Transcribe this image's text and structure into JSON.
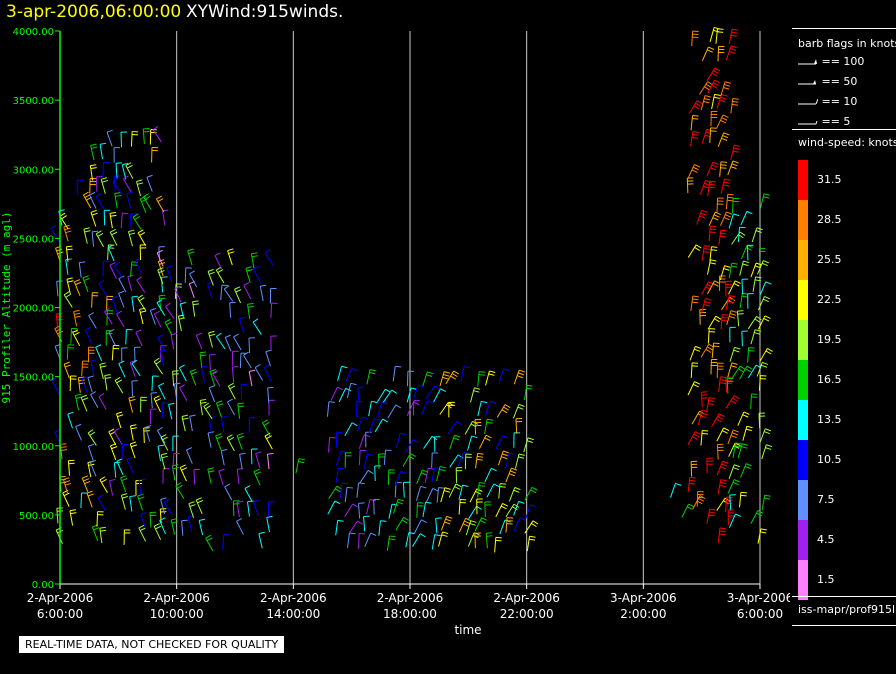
{
  "header": {
    "time": "3-apr-2006,06:00:00",
    "product": "XYWind:915winds."
  },
  "legend": {
    "flags_title": "barb flags in knots",
    "flags": [
      "== 100",
      "== 50",
      "== 10",
      "== 5"
    ],
    "speed_title": "wind-speed: knots",
    "colorbar": [
      {
        "label": "31.5",
        "color": "#ff0000"
      },
      {
        "label": "28.5",
        "color": "#ff8000"
      },
      {
        "label": "25.5",
        "color": "#ffb000"
      },
      {
        "label": "22.5",
        "color": "#ffff00"
      },
      {
        "label": "19.5",
        "color": "#a0ff30"
      },
      {
        "label": "16.5",
        "color": "#00d000"
      },
      {
        "label": "13.5",
        "color": "#00ffff"
      },
      {
        "label": "10.5",
        "color": "#0000ff"
      },
      {
        "label": "7.5",
        "color": "#6090ff"
      },
      {
        "label": "4.5",
        "color": "#a020f0"
      },
      {
        "label": "1.5",
        "color": "#ff80ff"
      }
    ],
    "source": "iss-mapr/prof915l"
  },
  "disclaimer": "REAL-TIME DATA, NOT CHECKED FOR QUALITY",
  "chart_data": {
    "type": "scatter",
    "subtype": "wind-barb time-height",
    "xlabel": "time",
    "ylabel": "915 Profiler Altitude (m agl)",
    "ylim": [
      0,
      4000
    ],
    "yticks": [
      "0.00",
      "500.00",
      "1000.00",
      "1500.00",
      "2000.00",
      "2500.00",
      "3000.00",
      "3500.00",
      "4000.00"
    ],
    "xticks": [
      {
        "date": "2-Apr-2006",
        "time": "6:00:00"
      },
      {
        "date": "2-Apr-2006",
        "time": "10:00:00"
      },
      {
        "date": "2-Apr-2006",
        "time": "14:00:00"
      },
      {
        "date": "2-Apr-2006",
        "time": "18:00:00"
      },
      {
        "date": "2-Apr-2006",
        "time": "22:00:00"
      },
      {
        "date": "3-Apr-2006",
        "time": "2:00:00"
      },
      {
        "date": "3-Apr-2006",
        "time": "6:00:00"
      }
    ],
    "xrange_hours": [
      0,
      24
    ],
    "grid": "vertical lines at x ticks",
    "segments": [
      {
        "t_start": 0.0,
        "t_end": 1.2,
        "alt_min": 300,
        "alt_max": 2900,
        "speed_min": 8,
        "speed_max": 32,
        "direction": "south-west"
      },
      {
        "t_start": 1.2,
        "t_end": 3.6,
        "alt_min": 300,
        "alt_max": 3200,
        "speed_min": 3,
        "speed_max": 25,
        "direction": "south-west"
      },
      {
        "t_start": 3.6,
        "t_end": 7.5,
        "alt_min": 250,
        "alt_max": 2300,
        "speed_min": 2,
        "speed_max": 22,
        "direction": "south-west"
      },
      {
        "t_start": 8.0,
        "t_end": 8.2,
        "alt_min": 700,
        "alt_max": 900,
        "speed_min": 17,
        "speed_max": 19,
        "direction": "south"
      },
      {
        "t_start": 9.2,
        "t_end": 13.0,
        "alt_min": 250,
        "alt_max": 1500,
        "speed_min": 5,
        "speed_max": 16,
        "direction": "south"
      },
      {
        "t_start": 13.0,
        "t_end": 16.0,
        "alt_min": 250,
        "alt_max": 1500,
        "speed_min": 10,
        "speed_max": 27,
        "direction": "south"
      },
      {
        "t_start": 17.8,
        "t_end": 18.0,
        "alt_min": 600,
        "alt_max": 700,
        "speed_min": 20,
        "speed_max": 22,
        "direction": "south"
      },
      {
        "t_start": 21.0,
        "t_end": 21.6,
        "alt_min": 500,
        "alt_max": 700,
        "speed_min": 8,
        "speed_max": 18,
        "direction": "south"
      },
      {
        "t_start": 21.6,
        "t_end": 23.0,
        "alt_min": 300,
        "alt_max": 4000,
        "speed_min": 22,
        "speed_max": 35,
        "direction": "south"
      },
      {
        "t_start": 23.0,
        "t_end": 24.0,
        "alt_min": 300,
        "alt_max": 2700,
        "speed_min": 12,
        "speed_max": 24,
        "direction": "south"
      }
    ]
  }
}
